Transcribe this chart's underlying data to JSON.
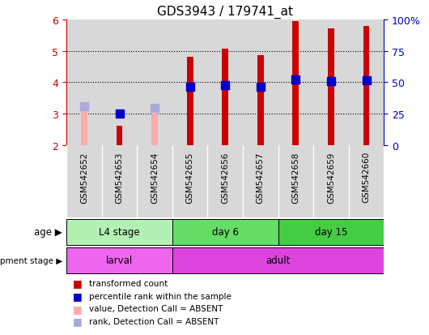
{
  "title": "GDS3943 / 179741_at",
  "samples": [
    "GSM542652",
    "GSM542653",
    "GSM542654",
    "GSM542655",
    "GSM542656",
    "GSM542657",
    "GSM542658",
    "GSM542659",
    "GSM542660"
  ],
  "transformed_count": [
    null,
    2.63,
    null,
    4.8,
    5.07,
    4.85,
    5.95,
    5.7,
    5.8
  ],
  "transformed_count_absent": [
    3.12,
    null,
    3.02,
    null,
    null,
    null,
    null,
    null,
    null
  ],
  "percentile_rank": [
    null,
    3.0,
    null,
    3.85,
    3.9,
    3.85,
    4.1,
    4.05,
    4.07
  ],
  "percentile_rank_absent": [
    3.25,
    null,
    3.2,
    null,
    null,
    null,
    null,
    null,
    null
  ],
  "ylim": [
    2,
    6
  ],
  "yticks": [
    2,
    3,
    4,
    5,
    6
  ],
  "right_yticklabels": [
    "0",
    "25",
    "50",
    "75",
    "100%"
  ],
  "bar_width": 0.18,
  "rank_marker_size": 55,
  "age_groups": [
    {
      "label": "L4 stage",
      "start": 0,
      "end": 3,
      "color": "#b3f0b3"
    },
    {
      "label": "day 6",
      "start": 3,
      "end": 6,
      "color": "#66dd66"
    },
    {
      "label": "day 15",
      "start": 6,
      "end": 9,
      "color": "#44cc44"
    }
  ],
  "dev_groups": [
    {
      "label": "larval",
      "start": 0,
      "end": 3,
      "color": "#ee66ee"
    },
    {
      "label": "adult",
      "start": 3,
      "end": 9,
      "color": "#dd44dd"
    }
  ],
  "color_red": "#cc0000",
  "color_blue": "#0000cc",
  "color_pink": "#ffaaaa",
  "color_lightblue": "#aaaadd",
  "axis_bg": "#d8d8d8",
  "left_tick_color": "#cc0000",
  "right_tick_color": "#0000cc",
  "legend_items": [
    [
      "#cc0000",
      "transformed count"
    ],
    [
      "#0000cc",
      "percentile rank within the sample"
    ],
    [
      "#ffaaaa",
      "value, Detection Call = ABSENT"
    ],
    [
      "#aaaadd",
      "rank, Detection Call = ABSENT"
    ]
  ]
}
